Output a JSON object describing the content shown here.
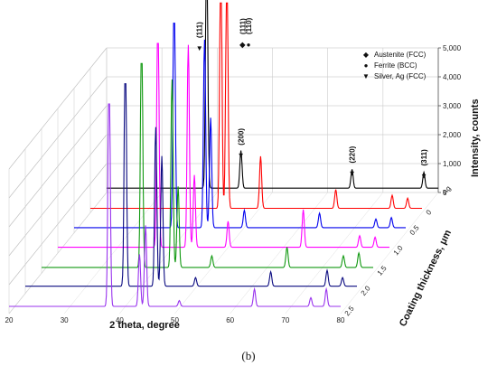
{
  "caption": "(b)",
  "chart_data": {
    "type": "line",
    "subtype": "3d-waterfall-xrd",
    "xlabel": "2 theta, degree",
    "zlabel": "Coating thickness, μm",
    "ylabel": "Intensity, counts",
    "xlim": [
      20,
      80
    ],
    "x_ticks": [
      "20",
      "30",
      "40",
      "50",
      "60",
      "70",
      "80"
    ],
    "ylim": [
      0,
      5000
    ],
    "y_ticks": [
      "0",
      "1,000",
      "2,000",
      "3,000",
      "4,000",
      "5,000"
    ],
    "z_ticks": [
      "Ag",
      "0",
      "0.5",
      "1.0",
      "1.5",
      "2.0",
      "2.5"
    ],
    "legend": {
      "placement": "top-right",
      "entries": [
        {
          "marker": "◆",
          "label": "Austenite (FCC)"
        },
        {
          "marker": "●",
          "label": "Ferrite (BCC)"
        },
        {
          "marker": "▼",
          "label": "Silver, Ag (FCC)"
        }
      ]
    },
    "annotations": [
      {
        "marker": "▼",
        "label": "(111)",
        "x": 38.1
      },
      {
        "marker": "▼",
        "label": "(200)",
        "x": 44.3
      },
      {
        "marker": "▼",
        "label": "(220)",
        "x": 64.4
      },
      {
        "marker": "▼",
        "label": "(311)",
        "x": 77.4
      },
      {
        "marker": "◆",
        "label": "(111)",
        "x": 43.6
      },
      {
        "marker": "●",
        "label": "(110)",
        "x": 44.7
      }
    ],
    "series": [
      {
        "name": "Ag",
        "color": "#000000",
        "baseline": 150,
        "peaks": [
          [
            38.1,
            9000
          ],
          [
            44.3,
            1300
          ],
          [
            64.4,
            650
          ],
          [
            77.4,
            550
          ]
        ]
      },
      {
        "name": "0",
        "color": "#ff0000",
        "baseline": 150,
        "peaks": [
          [
            43.6,
            9000
          ],
          [
            44.7,
            9000
          ],
          [
            50.8,
            1800
          ],
          [
            64.4,
            650
          ],
          [
            74.6,
            450
          ],
          [
            77.4,
            350
          ]
        ]
      },
      {
        "name": "0.5",
        "color": "#0000ee",
        "baseline": 180,
        "peaks": [
          [
            38.1,
            9000
          ],
          [
            43.6,
            6500
          ],
          [
            44.7,
            3800
          ],
          [
            50.8,
            600
          ],
          [
            64.4,
            500
          ],
          [
            74.6,
            300
          ],
          [
            77.4,
            350
          ]
        ]
      },
      {
        "name": "1.0",
        "color": "#ff00ff",
        "baseline": 200,
        "peaks": [
          [
            38.1,
            9000
          ],
          [
            43.6,
            7000
          ],
          [
            44.7,
            2500
          ],
          [
            50.8,
            900
          ],
          [
            64.4,
            1300
          ],
          [
            74.6,
            400
          ],
          [
            77.4,
            350
          ]
        ]
      },
      {
        "name": "1.5",
        "color": "#119911",
        "baseline": 200,
        "peaks": [
          [
            38.1,
            9000
          ],
          [
            43.6,
            6500
          ],
          [
            44.7,
            2800
          ],
          [
            50.8,
            400
          ],
          [
            64.4,
            700
          ],
          [
            74.6,
            400
          ],
          [
            77.4,
            500
          ]
        ]
      },
      {
        "name": "2.0",
        "color": "#0a0a80",
        "baseline": 250,
        "peaks": [
          [
            38.1,
            9000
          ],
          [
            43.6,
            5500
          ],
          [
            44.7,
            4500
          ],
          [
            50.8,
            300
          ],
          [
            64.4,
            500
          ],
          [
            74.6,
            550
          ],
          [
            77.4,
            300
          ]
        ]
      },
      {
        "name": "2.5",
        "color": "#9933ee",
        "baseline": 250,
        "peaks": [
          [
            38.1,
            9000
          ],
          [
            43.6,
            1800
          ],
          [
            44.7,
            2800
          ],
          [
            50.8,
            200
          ],
          [
            64.4,
            600
          ],
          [
            74.6,
            300
          ],
          [
            77.4,
            600
          ]
        ]
      }
    ]
  }
}
